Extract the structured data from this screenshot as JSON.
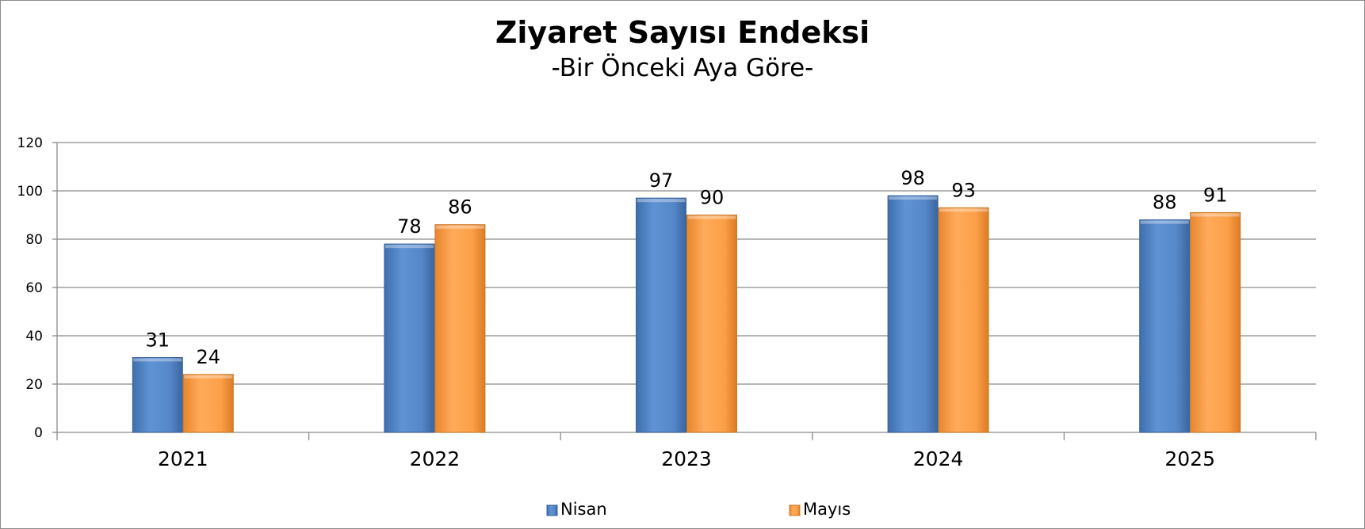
{
  "chart_data": {
    "type": "bar",
    "title": "Ziyaret Sayısı Endeksi",
    "subtitle": "-Bir Önceki Aya Göre-",
    "categories": [
      "2021",
      "2022",
      "2023",
      "2024",
      "2025"
    ],
    "series": [
      {
        "name": "Nisan",
        "values": [
          31,
          78,
          97,
          98,
          88
        ],
        "color": "#5587c8"
      },
      {
        "name": "Mayıs",
        "values": [
          24,
          86,
          90,
          93,
          91
        ],
        "color": "#fb9f48"
      }
    ],
    "ylim": [
      0,
      120
    ],
    "yticks": [
      0,
      20,
      40,
      60,
      80,
      100,
      120
    ],
    "grid": true,
    "legend_position": "bottom"
  }
}
